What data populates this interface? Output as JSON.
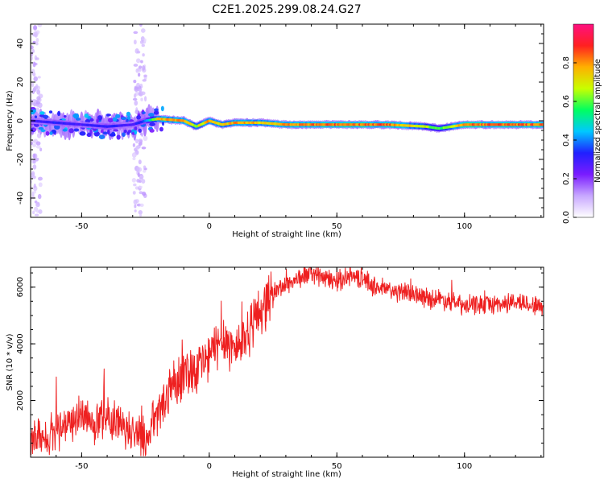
{
  "chart_data": [
    {
      "type": "heatmap",
      "title": "C2E1.2025.299.08.24.G27",
      "xlabel": "Height of straight line (km)",
      "ylabel": "Frequency (Hz)",
      "xlim": [
        -70,
        131
      ],
      "ylim": [
        -50,
        50
      ],
      "xticks": [
        -50,
        0,
        50,
        100
      ],
      "yticks": [
        -40,
        -20,
        0,
        20,
        40
      ],
      "colorbar": {
        "label": "Normalized spectral amplitude",
        "range": [
          0,
          1
        ],
        "ticks": [
          "0.0",
          "0.2",
          "0.4",
          "0.6",
          "0.8"
        ],
        "colors": [
          "#ffffff",
          "#c8a8ff",
          "#7a1cff",
          "#2020ff",
          "#00c8ff",
          "#00ff60",
          "#c8ff00",
          "#ffb000",
          "#ff2020",
          "#ff1080"
        ]
      },
      "ridge": {
        "x": [
          -70,
          -60,
          -50,
          -40,
          -30,
          -25,
          -20,
          -10,
          -5,
          0,
          5,
          10,
          20,
          30,
          50,
          70,
          85,
          90,
          95,
          100,
          110,
          131
        ],
        "freq": [
          0,
          -1,
          -2,
          -3,
          -2,
          0,
          1,
          0,
          -3,
          0,
          -2,
          -1,
          -1,
          -2,
          -2,
          -2,
          -3,
          -4,
          -3,
          -2,
          -2,
          -2
        ],
        "amplitude": [
          0.3,
          0.35,
          0.3,
          0.35,
          0.3,
          0.4,
          0.8,
          0.85,
          0.7,
          0.85,
          0.75,
          0.85,
          0.8,
          0.85,
          0.9,
          0.9,
          0.7,
          0.6,
          0.75,
          0.9,
          0.9,
          0.9
        ]
      }
    },
    {
      "type": "line",
      "title": "",
      "xlabel": "Height of straight line (km)",
      "ylabel": "SNR (10 * v/v)",
      "xlim": [
        -70,
        131
      ],
      "ylim": [
        0,
        6700
      ],
      "xticks": [
        -50,
        0,
        50,
        100
      ],
      "yticks": [
        2000,
        4000,
        6000
      ],
      "series": [
        {
          "name": "SNR",
          "color": "#ee2020",
          "x": [
            -70,
            -65,
            -60,
            -55,
            -50,
            -45,
            -40,
            -35,
            -30,
            -25,
            -20,
            -15,
            -10,
            -5,
            0,
            5,
            10,
            15,
            20,
            25,
            30,
            35,
            40,
            45,
            50,
            55,
            60,
            65,
            70,
            75,
            80,
            85,
            90,
            95,
            100,
            105,
            110,
            115,
            120,
            125,
            131
          ],
          "y": [
            500,
            700,
            1000,
            1300,
            1500,
            1200,
            1400,
            1100,
            900,
            700,
            1500,
            2600,
            3000,
            3200,
            3500,
            4300,
            3800,
            4400,
            5200,
            5800,
            6100,
            6300,
            6500,
            6300,
            6200,
            6400,
            6300,
            6000,
            5900,
            5800,
            5800,
            5600,
            5600,
            5500,
            5300,
            5400,
            5400,
            5400,
            5500,
            5400,
            5300
          ]
        }
      ]
    }
  ]
}
